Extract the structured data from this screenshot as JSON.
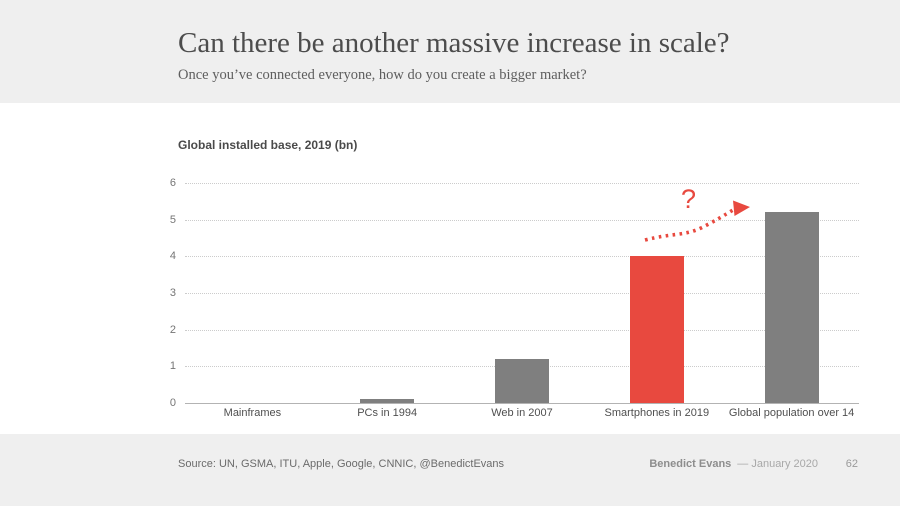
{
  "slide": {
    "title": "Can there be another massive increase in scale?",
    "subtitle": "Once you’ve connected everyone, how do you create a bigger market?",
    "footer": {
      "source": "Source: UN, GSMA, ITU, Apple, Google, CNNIC, @BenedictEvans",
      "author": "Benedict Evans",
      "date": "— January 2020",
      "page_number": "62"
    }
  },
  "chart_data": {
    "type": "bar",
    "title": "Global installed base, 2019 (bn)",
    "categories": [
      "Mainframes",
      "PCs in 1994",
      "Web in 2007",
      "Smartphones in 2019",
      "Global population over 14"
    ],
    "values": [
      0,
      0.1,
      1.2,
      4,
      5.2
    ],
    "xlabel": "",
    "ylabel": "",
    "ylim": [
      0,
      6
    ],
    "yticks": [
      0,
      1,
      2,
      3,
      4,
      5,
      6
    ],
    "grid": "horizontal-dotted",
    "legend": "none",
    "highlight_index": 3,
    "bar_color_default": "#7f7f7f",
    "bar_color_highlight": "#e8493f",
    "annotation": {
      "text": "?",
      "color": "#e8493f",
      "description": "red dotted curved arrow from above Smartphones bar pointing to top of Global population bar"
    }
  },
  "colors": {
    "header_bg": "#efefef",
    "footer_bg": "#efefef",
    "main_bg": "#ffffff",
    "accent_red": "#e8493f",
    "title_text": "#4c4c4c",
    "subtitle_text": "#5e5e5e",
    "chart_title_text": "#4a4a4a",
    "axis_text": "#757575",
    "category_text": "#4f4f4f",
    "gridline": "#cccccc",
    "baseline": "#b3b3b3",
    "source_text": "#6b6b6b",
    "author_text": "#8d8d8d",
    "date_text": "#a8a8a8",
    "page_text": "#9a9a9a"
  }
}
